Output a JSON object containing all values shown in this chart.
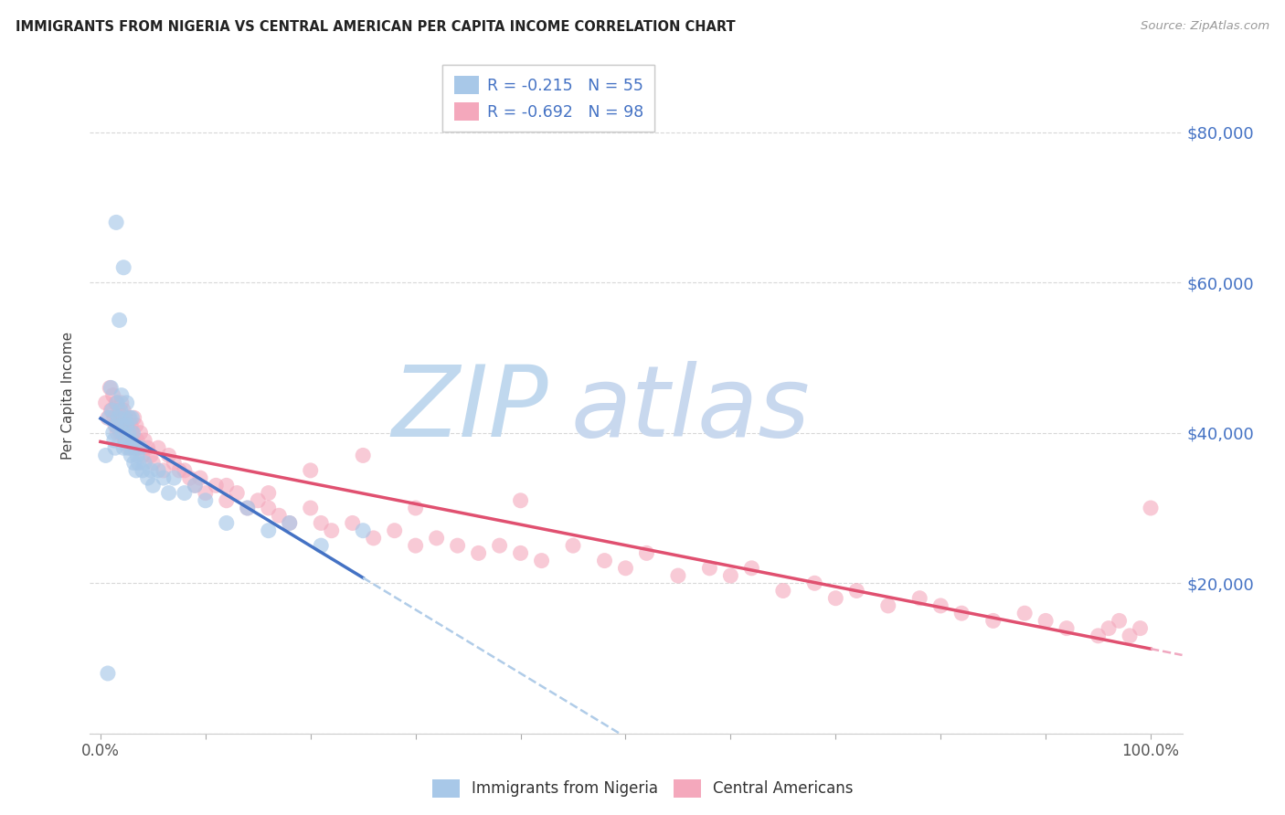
{
  "title": "IMMIGRANTS FROM NIGERIA VS CENTRAL AMERICAN PER CAPITA INCOME CORRELATION CHART",
  "source": "Source: ZipAtlas.com",
  "ylabel": "Per Capita Income",
  "xlim": [
    -0.01,
    1.03
  ],
  "ylim": [
    0,
    90000
  ],
  "yticks": [
    0,
    20000,
    40000,
    60000,
    80000
  ],
  "ytick_labels_right": [
    "",
    "$20,000",
    "$40,000",
    "$60,000",
    "$80,000"
  ],
  "xtick_left_label": "0.0%",
  "xtick_right_label": "100.0%",
  "legend_r1": "R = ",
  "legend_v1": "-0.215",
  "legend_n1": "   N = ",
  "legend_nv1": "55",
  "legend_v2": "-0.692",
  "legend_nv2": "98",
  "legend_foot1": "Immigrants from Nigeria",
  "legend_foot2": "Central Americans",
  "color_blue": "#A8C8E8",
  "color_pink": "#F4A8BC",
  "line_blue": "#4472C4",
  "line_pink": "#E05070",
  "line_dashed_blue": "#B0CCE8",
  "line_dashed_pink": "#F0A8C0",
  "bg_color": "#FFFFFF",
  "grid_color": "#D8D8D8",
  "title_color": "#222222",
  "source_color": "#999999",
  "right_axis_color": "#4472C4",
  "watermark_zip_color": "#C0D8EE",
  "watermark_atlas_color": "#C8D8EE",
  "nigeria_x": [
    0.005,
    0.008,
    0.01,
    0.011,
    0.012,
    0.013,
    0.014,
    0.015,
    0.015,
    0.016,
    0.017,
    0.018,
    0.019,
    0.02,
    0.02,
    0.021,
    0.022,
    0.022,
    0.023,
    0.024,
    0.025,
    0.025,
    0.026,
    0.027,
    0.028,
    0.028,
    0.029,
    0.03,
    0.03,
    0.031,
    0.032,
    0.033,
    0.034,
    0.035,
    0.036,
    0.038,
    0.04,
    0.042,
    0.045,
    0.048,
    0.05,
    0.055,
    0.06,
    0.065,
    0.07,
    0.08,
    0.09,
    0.1,
    0.12,
    0.14,
    0.16,
    0.18,
    0.21,
    0.25,
    0.007
  ],
  "nigeria_y": [
    37000,
    42000,
    46000,
    43000,
    40000,
    39000,
    38000,
    41000,
    68000,
    44000,
    42000,
    55000,
    43000,
    45000,
    41000,
    40000,
    38000,
    62000,
    42000,
    39000,
    44000,
    41000,
    38000,
    40000,
    42000,
    39000,
    37000,
    42000,
    38000,
    40000,
    36000,
    38000,
    35000,
    37000,
    36000,
    38000,
    35000,
    36000,
    34000,
    35000,
    33000,
    35000,
    34000,
    32000,
    34000,
    32000,
    33000,
    31000,
    28000,
    30000,
    27000,
    28000,
    25000,
    27000,
    8000
  ],
  "central_x": [
    0.005,
    0.007,
    0.009,
    0.01,
    0.012,
    0.013,
    0.014,
    0.015,
    0.016,
    0.017,
    0.018,
    0.019,
    0.02,
    0.021,
    0.022,
    0.023,
    0.024,
    0.025,
    0.026,
    0.027,
    0.028,
    0.029,
    0.03,
    0.031,
    0.032,
    0.033,
    0.034,
    0.035,
    0.036,
    0.038,
    0.04,
    0.042,
    0.045,
    0.048,
    0.05,
    0.055,
    0.06,
    0.065,
    0.07,
    0.075,
    0.08,
    0.085,
    0.09,
    0.095,
    0.1,
    0.11,
    0.12,
    0.13,
    0.14,
    0.15,
    0.16,
    0.17,
    0.18,
    0.2,
    0.21,
    0.22,
    0.24,
    0.26,
    0.28,
    0.3,
    0.32,
    0.34,
    0.36,
    0.38,
    0.4,
    0.42,
    0.45,
    0.48,
    0.5,
    0.52,
    0.55,
    0.58,
    0.6,
    0.62,
    0.65,
    0.68,
    0.7,
    0.72,
    0.75,
    0.78,
    0.8,
    0.82,
    0.85,
    0.88,
    0.9,
    0.92,
    0.95,
    0.96,
    0.97,
    0.98,
    0.99,
    1.0,
    0.25,
    0.16,
    0.12,
    0.3,
    0.2,
    0.4
  ],
  "central_y": [
    44000,
    42000,
    46000,
    43000,
    45000,
    42000,
    41000,
    44000,
    40000,
    43000,
    42000,
    40000,
    44000,
    41000,
    43000,
    39000,
    42000,
    41000,
    40000,
    42000,
    38000,
    41000,
    40000,
    39000,
    42000,
    38000,
    41000,
    39000,
    38000,
    40000,
    37000,
    39000,
    38000,
    37000,
    36000,
    38000,
    35000,
    37000,
    36000,
    35000,
    35000,
    34000,
    33000,
    34000,
    32000,
    33000,
    31000,
    32000,
    30000,
    31000,
    30000,
    29000,
    28000,
    30000,
    28000,
    27000,
    28000,
    26000,
    27000,
    25000,
    26000,
    25000,
    24000,
    25000,
    24000,
    23000,
    25000,
    23000,
    22000,
    24000,
    21000,
    22000,
    21000,
    22000,
    19000,
    20000,
    18000,
    19000,
    17000,
    18000,
    17000,
    16000,
    15000,
    16000,
    15000,
    14000,
    13000,
    14000,
    15000,
    13000,
    14000,
    30000,
    37000,
    32000,
    33000,
    30000,
    35000,
    31000
  ]
}
